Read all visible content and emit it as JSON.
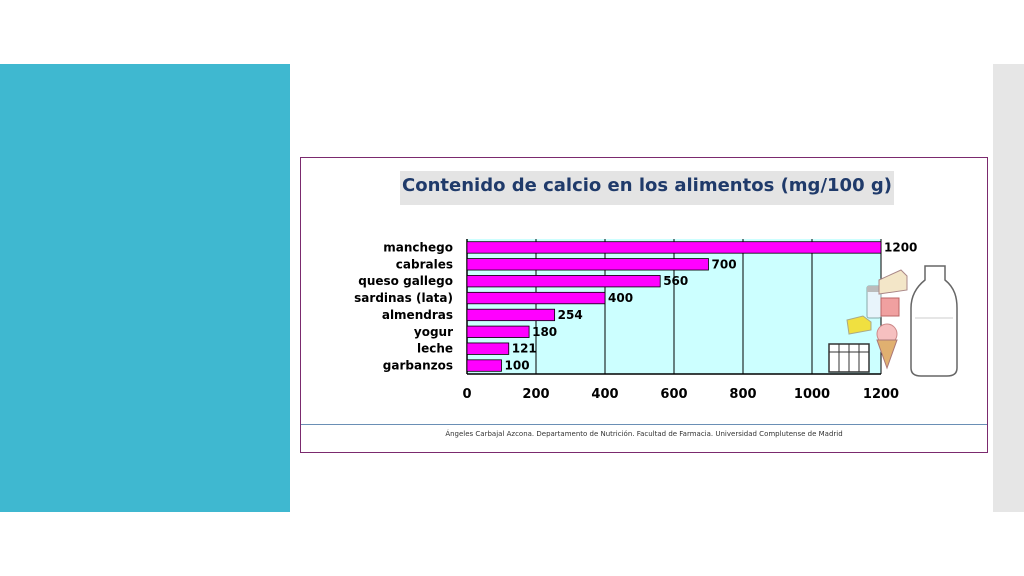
{
  "slide": {
    "accent_color": "#3fb8d0",
    "credit": "Ángeles Carbajal Azcona. Departamento de Nutrición. Facultad de Farmacia. Universidad Complutense de Madrid"
  },
  "chart_data": {
    "type": "bar",
    "orientation": "horizontal",
    "title": "Contenido de calcio en los alimentos (mg/100 g)",
    "categories": [
      "manchego",
      "cabrales",
      "queso gallego",
      "sardinas (lata)",
      "almendras",
      "yogur",
      "leche",
      "garbanzos"
    ],
    "values": [
      1200,
      700,
      560,
      400,
      254,
      180,
      121,
      100
    ],
    "value_labels": [
      "1200",
      "700",
      "560",
      "400",
      "254",
      "180",
      "121",
      "100"
    ],
    "xlim": [
      0,
      1200
    ],
    "xticks": [
      "0",
      "200",
      "400",
      "600",
      "800",
      "1000",
      "1200"
    ],
    "xtick_values": [
      0,
      200,
      400,
      600,
      800,
      1000,
      1200
    ],
    "bar_color": "#ff00ff",
    "plot_background": "#ccffff",
    "grid": true,
    "decorations": [
      "cheese-icon",
      "milk-bottle-icon",
      "ice-cream-icon",
      "yogurt-cup-icon",
      "milk-crate-icon"
    ]
  }
}
